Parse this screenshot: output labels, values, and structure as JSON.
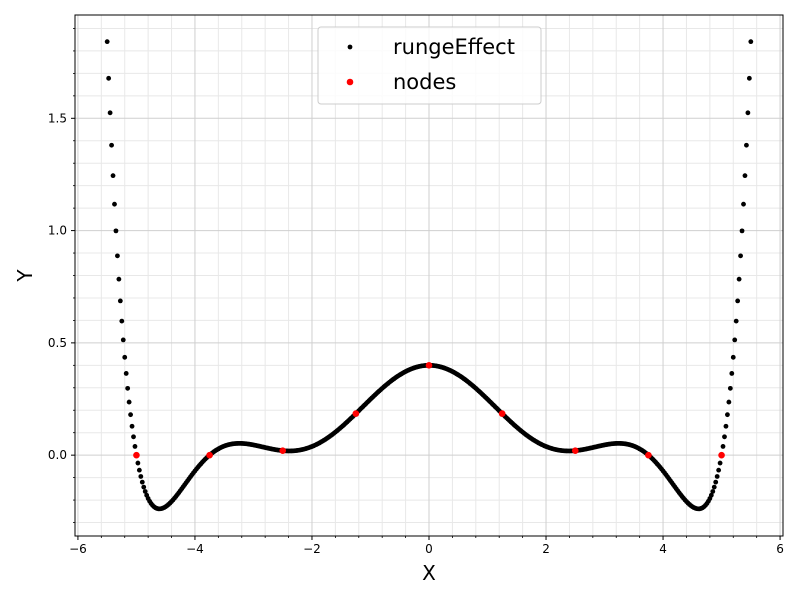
{
  "chart_data": {
    "type": "scatter",
    "xlabel": "X",
    "ylabel": "Y",
    "xlim": [
      -6.05,
      6.05
    ],
    "ylim": [
      -0.36,
      1.96
    ],
    "x_ticks": [
      -6,
      -4,
      -2,
      0,
      2,
      4,
      6
    ],
    "x_tick_labels": [
      "−6",
      "−4",
      "−2",
      "0",
      "2",
      "4",
      "6"
    ],
    "y_ticks": [
      0.0,
      0.5,
      1.0,
      1.5
    ],
    "y_tick_labels": [
      "0.0",
      "0.5",
      "1.0",
      "1.5"
    ],
    "x_minor_step": 0.4,
    "y_minor_step": 0.1,
    "grid": true,
    "legend": "upper center",
    "series": [
      {
        "name": "rungeEffect",
        "color": "#000000",
        "x_start": -5.5,
        "x_end": 5.5,
        "count": 441,
        "curve": {
          "nodes_x": [
            -5,
            -3.75,
            -2.5,
            -1.25,
            0,
            1.25,
            2.5,
            3.75,
            5
          ],
          "nodes_y": [
            0.0,
            0.0,
            0.02,
            0.185,
            0.4,
            0.185,
            0.02,
            0.0,
            0.0
          ]
        }
      },
      {
        "name": "nodes",
        "color": "#ff0000",
        "x": [
          -5,
          -3.75,
          -2.5,
          -1.25,
          0,
          1.25,
          2.5,
          3.75,
          5
        ],
        "y": [
          0.0,
          0.0,
          0.02,
          0.185,
          0.4,
          0.185,
          0.02,
          0.0,
          0.0
        ]
      }
    ]
  }
}
